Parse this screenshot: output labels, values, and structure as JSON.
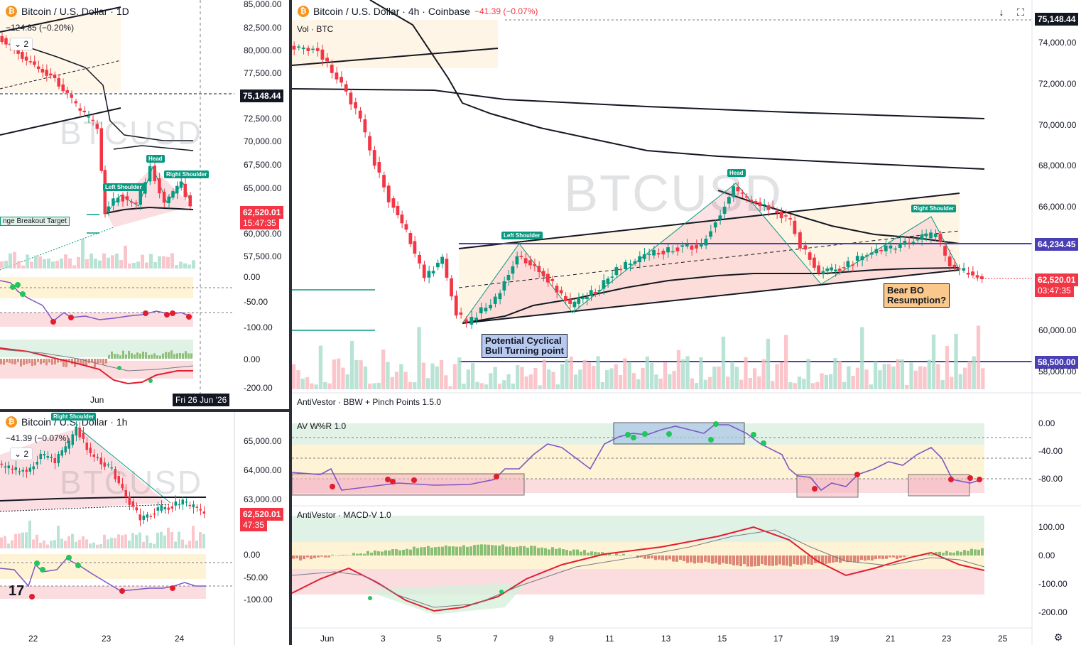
{
  "daily": {
    "title": "Bitcoin / U.S. Dollar · 1D",
    "change": "−124.85 (−0.20%)",
    "indicator_count": "2",
    "watermark": "BTCUSD",
    "price_axis": [
      "85,000.00",
      "82,500.00",
      "80,000.00",
      "77,500.00",
      "75,148.44",
      "72,500.00",
      "70,000.00",
      "67,500.00",
      "65,000.00",
      "62,520.01",
      "15:47:35",
      "60,000.00",
      "57,500.00"
    ],
    "osc_axis": [
      "0.00",
      "-50.00",
      "-100.00"
    ],
    "macd_axis": [
      "0.00",
      "-200.00"
    ],
    "time_axis": [
      "Jun"
    ],
    "crosshair_date": "Fri 26 Jun '26",
    "labels": {
      "head": "Head",
      "left_shoulder": "Left Shoulder",
      "right_shoulder": "Right Shoulder",
      "range_target": "nge Breakout Target"
    }
  },
  "hourly": {
    "title": "Bitcoin / U.S. Dollar · 1h",
    "change": "−41.39 (−0.07%)",
    "indicator_count": "2",
    "watermark": "BTCUSD",
    "price_axis": [
      "65,000.00",
      "64,000.00",
      "63,000.00",
      "62,520.01",
      "47:35"
    ],
    "osc_axis": [
      "0.00",
      "-50.00",
      "-100.00"
    ],
    "time_axis": [
      "22",
      "23",
      "24"
    ],
    "labels": {
      "right_shoulder": "Right Shoulder"
    }
  },
  "main": {
    "title": "Bitcoin / U.S. Dollar · 4h · Coinbase",
    "change": "−41.39 (−0.07%)",
    "vol_label": "Vol · BTC",
    "watermark": "BTCUSD",
    "price_axis": [
      "74,000.00",
      "72,000.00",
      "70,000.00",
      "68,000.00",
      "66,000.00",
      "60,000.00",
      "58,000.00"
    ],
    "price_tags": {
      "top": "75,148.44",
      "level1": "64,234.45",
      "last": "62,520.01",
      "countdown": "03:47:35",
      "level2": "58,500.00"
    },
    "time_axis": [
      "Jun",
      "3",
      "5",
      "7",
      "9",
      "11",
      "13",
      "15",
      "17",
      "19",
      "21",
      "23",
      "25"
    ],
    "labels": {
      "head": "Head",
      "left_shoulder": "Left Shoulder",
      "right_shoulder": "Right Shoulder"
    },
    "notes": {
      "cyclical": "Potential Cyclical\nBull Turning point",
      "bear": "Bear BO\nResumption?"
    },
    "indicators": {
      "bbw": "AntiVestor · BBW + Pinch Points 1.5.0",
      "wr": "AV W%R 1.0",
      "wr_axis": [
        "0.00",
        "-40.00",
        "-80.00"
      ],
      "macd": "AntiVestor · MACD-V 1.0",
      "macd_axis": [
        "100.00",
        "0.00",
        "-100.00",
        "-200.00"
      ]
    }
  },
  "colors": {
    "up": "#089981",
    "down": "#f23645",
    "accent": "#5b3fd1",
    "level": "#4a3fb5",
    "note_blue": "#b7c9ee",
    "note_orange": "#fbc88b"
  },
  "icons": [
    "bitcoin-icon",
    "arrow-down-icon",
    "fullscreen-icon",
    "settings-icon",
    "tradingview-logo-icon"
  ]
}
